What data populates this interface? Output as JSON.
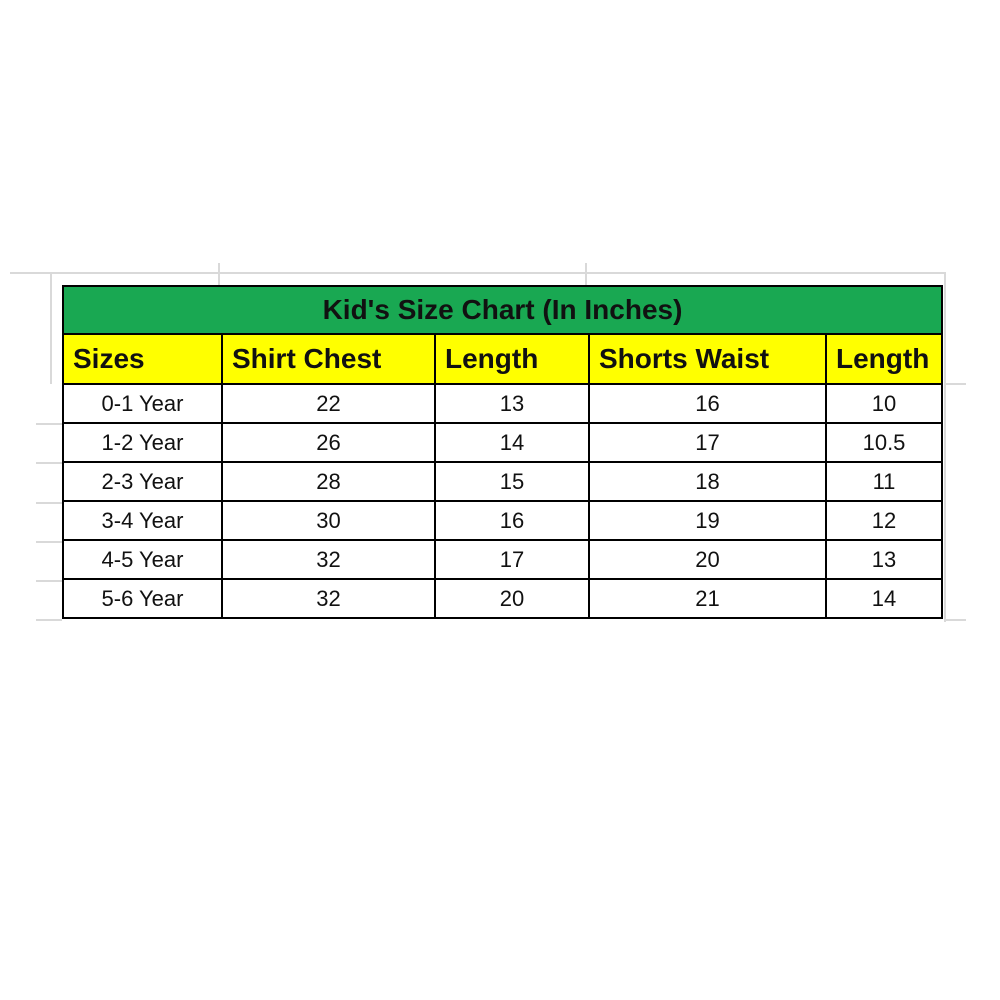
{
  "chart_data": {
    "type": "table",
    "title": "Kid's Size Chart (In Inches)",
    "columns": [
      "Sizes",
      "Shirt Chest",
      "Length",
      "Shorts Waist",
      "Length"
    ],
    "rows": [
      [
        "0-1 Year",
        "22",
        "13",
        "16",
        "10"
      ],
      [
        "1-2 Year",
        "26",
        "14",
        "17",
        "10.5"
      ],
      [
        "2-3 Year",
        "28",
        "15",
        "18",
        "11"
      ],
      [
        "3-4 Year",
        "30",
        "16",
        "19",
        "12"
      ],
      [
        "4-5 Year",
        "32",
        "17",
        "20",
        "13"
      ],
      [
        "5-6 Year",
        "32",
        "20",
        "21",
        "14"
      ]
    ],
    "layout": {
      "legend": "none",
      "grid": "faint spreadsheet gridlines visible outside table"
    },
    "colors": {
      "title_bg": "#19a852",
      "header_bg": "#ffff00",
      "border": "#000000",
      "text": "#000000",
      "sheet_gridline": "#d9d9d9",
      "page_bg": "#ffffff"
    }
  }
}
